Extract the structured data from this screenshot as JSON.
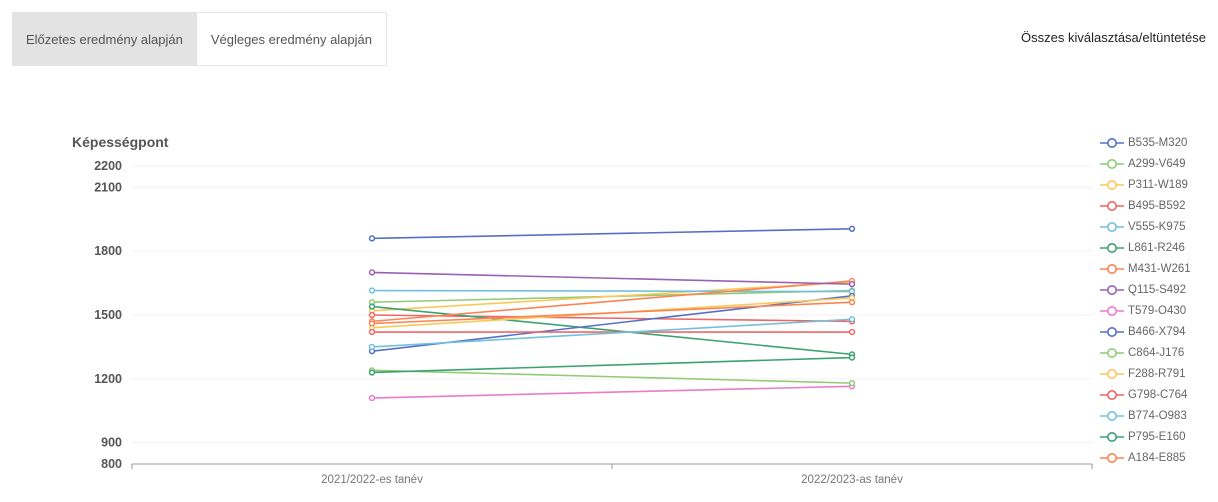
{
  "tabs": [
    {
      "label": "Előzetes eredmény alapján",
      "active": true
    },
    {
      "label": "Végleges eredmény alapján",
      "active": false
    }
  ],
  "toggle_all_label": "Összes kiválasztása/eltüntetése",
  "colors": {
    "axis": "#999999",
    "grid": "#f0f0f0",
    "tick_text": "#555555",
    "ylabel_text": "#555555",
    "xlabel_text": "#777777"
  },
  "chart_data": {
    "type": "line",
    "ylabel": "Képességpont",
    "xlabel": "",
    "categories": [
      "2021/2022-es tanév",
      "2022/2023-as tanév"
    ],
    "yticks": [
      800,
      900,
      1200,
      1500,
      1800,
      2100,
      2200
    ],
    "ylim": [
      800,
      2200
    ],
    "grid": true,
    "legend_position": "right",
    "series": [
      {
        "name": "B535-M320",
        "color": "#5470c6",
        "values": [
          1860,
          1905
        ]
      },
      {
        "name": "A299-V649",
        "color": "#91cc75",
        "values": [
          1560,
          1615
        ]
      },
      {
        "name": "P311-W189",
        "color": "#fac858",
        "values": [
          1520,
          1655
        ]
      },
      {
        "name": "B495-B592",
        "color": "#ee6666",
        "values": [
          1500,
          1470
        ]
      },
      {
        "name": "V555-K975",
        "color": "#73c0de",
        "values": [
          1615,
          1610
        ]
      },
      {
        "name": "L861-R246",
        "color": "#3ba272",
        "values": [
          1540,
          1315
        ]
      },
      {
        "name": "M431-W261",
        "color": "#fc8452",
        "values": [
          1470,
          1660
        ]
      },
      {
        "name": "Q115-S492",
        "color": "#9a60b4",
        "values": [
          1700,
          1645
        ]
      },
      {
        "name": "T579-O430",
        "color": "#ea7ccc",
        "values": [
          1110,
          1165
        ]
      },
      {
        "name": "B466-X794",
        "color": "#5470c6",
        "values": [
          1330,
          1590
        ]
      },
      {
        "name": "C864-J176",
        "color": "#91cc75",
        "values": [
          1240,
          1180
        ]
      },
      {
        "name": "F288-R791",
        "color": "#fac858",
        "values": [
          1440,
          1580
        ]
      },
      {
        "name": "G798-C764",
        "color": "#ee6666",
        "values": [
          1420,
          1420
        ]
      },
      {
        "name": "B774-O983",
        "color": "#73c0de",
        "values": [
          1350,
          1480
        ]
      },
      {
        "name": "P795-E160",
        "color": "#3ba272",
        "values": [
          1230,
          1300
        ]
      },
      {
        "name": "A184-E885",
        "color": "#fc8452",
        "values": [
          1460,
          1560
        ]
      }
    ]
  }
}
